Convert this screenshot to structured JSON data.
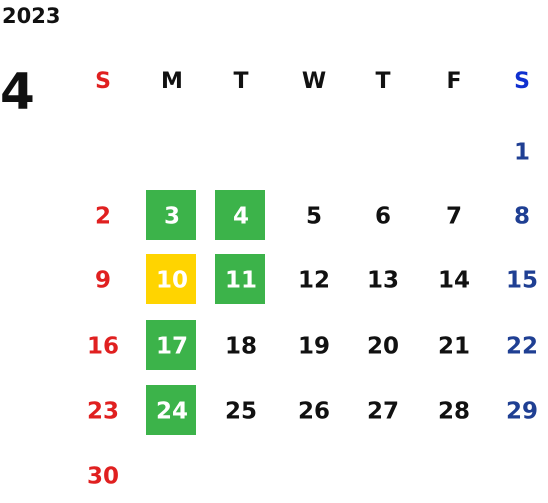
{
  "year": "2023",
  "month": "4",
  "weekdays": [
    "S",
    "M",
    "T",
    "W",
    "T",
    "F",
    "S"
  ],
  "weekday_colors": [
    "#e02020",
    "#111111",
    "#111111",
    "#111111",
    "#111111",
    "#111111",
    "#1030d0"
  ],
  "day_colors": [
    "#e02020",
    "#111111",
    "#111111",
    "#111111",
    "#111111",
    "#111111",
    "#1f3f93"
  ],
  "highlight_text_color": "#ffffff",
  "weeks": [
    [
      null,
      null,
      null,
      null,
      null,
      null,
      {
        "day": 1
      }
    ],
    [
      {
        "day": 2
      },
      {
        "day": 3,
        "fill": "#3cb34a"
      },
      {
        "day": 4,
        "fill": "#3cb34a"
      },
      {
        "day": 5
      },
      {
        "day": 6
      },
      {
        "day": 7
      },
      {
        "day": 8
      }
    ],
    [
      {
        "day": 9
      },
      {
        "day": 10,
        "fill": "#ffd400"
      },
      {
        "day": 11,
        "fill": "#3cb34a"
      },
      {
        "day": 12
      },
      {
        "day": 13
      },
      {
        "day": 14
      },
      {
        "day": 15
      }
    ],
    [
      {
        "day": 16
      },
      {
        "day": 17,
        "fill": "#3cb34a"
      },
      {
        "day": 18
      },
      {
        "day": 19
      },
      {
        "day": 20
      },
      {
        "day": 21
      },
      {
        "day": 22
      }
    ],
    [
      {
        "day": 23
      },
      {
        "day": 24,
        "fill": "#3cb34a"
      },
      {
        "day": 25
      },
      {
        "day": 26
      },
      {
        "day": 27
      },
      {
        "day": 28
      },
      {
        "day": 29
      }
    ],
    [
      {
        "day": 30
      },
      null,
      null,
      null,
      null,
      null,
      null
    ]
  ]
}
